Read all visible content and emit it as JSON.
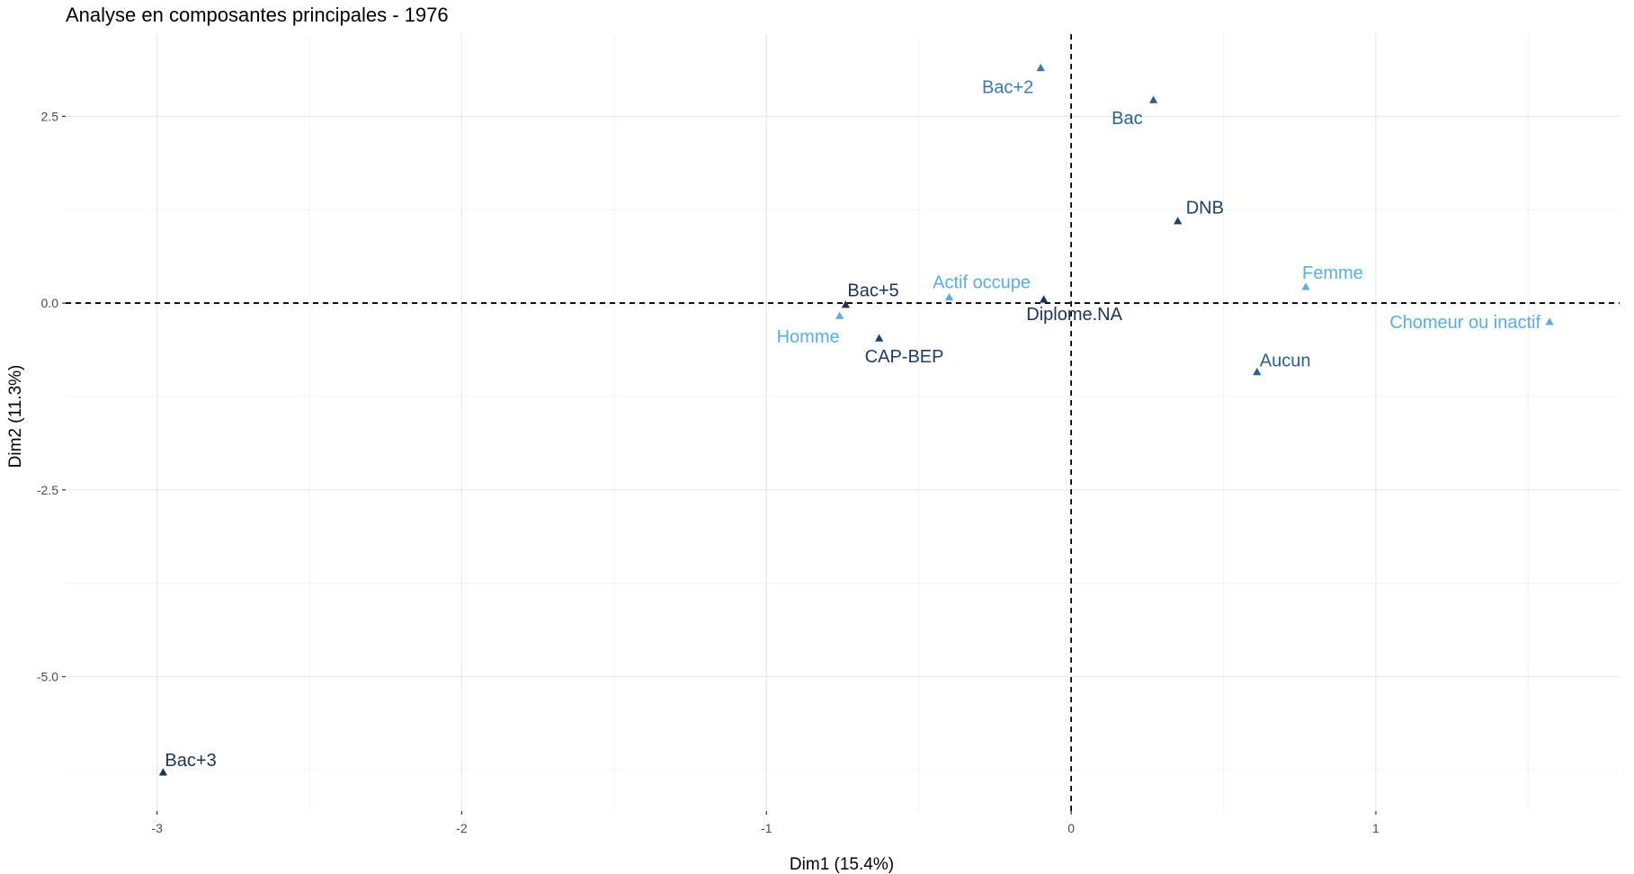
{
  "chart_data": {
    "type": "scatter",
    "title": "Analyse en composantes principales - 1976",
    "xlabel": "Dim1 (15.4%)",
    "ylabel": "Dim2 (11.3%)",
    "xlim": [
      -3.3,
      1.8
    ],
    "ylim": [
      -6.8,
      3.6
    ],
    "xticks": [
      -3,
      -2,
      -1,
      0,
      1
    ],
    "yticks": [
      2.5,
      0.0,
      -2.5,
      -5.0
    ],
    "xtick_labels": [
      "-3",
      "-2",
      "-1",
      "0",
      "1"
    ],
    "ytick_labels": [
      "2.5",
      "0.0",
      "-2.5",
      "-5.0"
    ],
    "grid": true,
    "reference_lines": {
      "x": 0,
      "y": 0
    },
    "marker": "triangle",
    "points": [
      {
        "label": "Bac+2",
        "x": -0.1,
        "y": 3.15,
        "color": "#3a78b0"
      },
      {
        "label": "Bac",
        "x": 0.27,
        "y": 2.72,
        "color": "#2a5f8f"
      },
      {
        "label": "DNB",
        "x": 0.35,
        "y": 1.1,
        "color": "#1f3f63"
      },
      {
        "label": "Femme",
        "x": 0.77,
        "y": 0.22,
        "color": "#5aaee3"
      },
      {
        "label": "Actif occupe",
        "x": -0.4,
        "y": 0.08,
        "color": "#5aaee3"
      },
      {
        "label": "Bac+5",
        "x": -0.74,
        "y": -0.02,
        "color": "#1c3452"
      },
      {
        "label": "Diplome.NA",
        "x": -0.09,
        "y": 0.05,
        "color": "#1c3452"
      },
      {
        "label": "Homme",
        "x": -0.76,
        "y": -0.17,
        "color": "#5aaee3"
      },
      {
        "label": "Chomeur ou inactif",
        "x": 1.57,
        "y": -0.25,
        "color": "#5aaee3"
      },
      {
        "label": "CAP-BEP",
        "x": -0.63,
        "y": -0.47,
        "color": "#1f3f63"
      },
      {
        "label": "Aucun",
        "x": 0.61,
        "y": -0.92,
        "color": "#2a5f8f"
      },
      {
        "label": "Bac+3",
        "x": -2.98,
        "y": -6.28,
        "color": "#1c3452"
      }
    ]
  }
}
